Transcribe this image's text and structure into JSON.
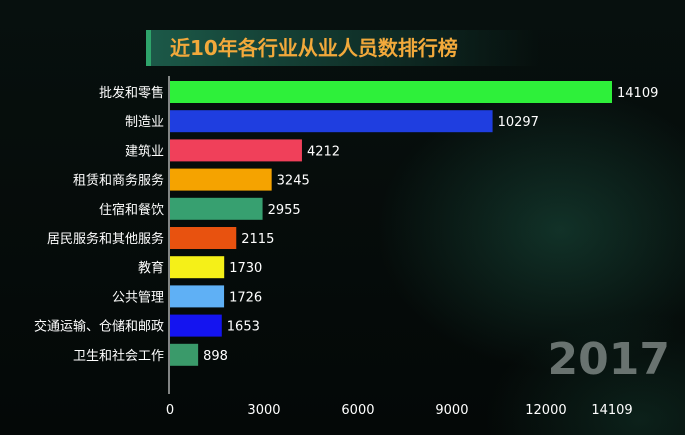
{
  "chart_data": {
    "type": "bar",
    "orientation": "horizontal",
    "title": "近10年各行业从业人员数排行榜",
    "categories": [
      "批发和零售",
      "制造业",
      "建筑业",
      "租赁和商务服务",
      "住宿和餐饮",
      "居民服务和其他服务",
      "教育",
      "公共管理",
      "交通运输、仓储和邮政",
      "卫生和社会工作"
    ],
    "values": [
      14109,
      10297,
      4212,
      3245,
      2955,
      2115,
      1730,
      1726,
      1653,
      898
    ],
    "colors": [
      "#2ef03a",
      "#1f3ee0",
      "#f0405a",
      "#f5a300",
      "#37a070",
      "#e8520f",
      "#f5f018",
      "#5fb0f5",
      "#1414f0",
      "#3a9a6a"
    ],
    "xlim": [
      0,
      14109
    ],
    "xticks": [
      0,
      3000,
      6000,
      9000,
      12000,
      14109
    ],
    "annotation": "2017",
    "grid": false
  }
}
